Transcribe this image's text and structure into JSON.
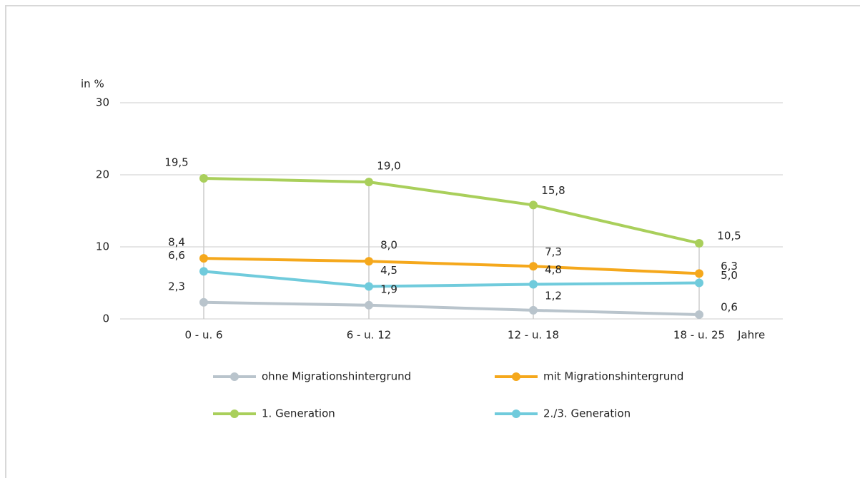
{
  "chart_data": {
    "type": "line",
    "y_label": "in %",
    "x_label": "Jahre",
    "categories": [
      "0 - u. 6",
      "6 - u. 12",
      "12 - u. 18",
      "18 - u. 25"
    ],
    "ylim": [
      0,
      30
    ],
    "yticks": [
      0,
      10,
      20,
      30
    ],
    "grid": true,
    "series": [
      {
        "name": "ohne Migrationshintergrund",
        "color": "#b9c4cc",
        "values": [
          2.3,
          1.9,
          1.2,
          0.6
        ],
        "value_labels": [
          "2,3",
          "1,9",
          "1,2",
          "0,6"
        ]
      },
      {
        "name": "mit Migrationshintergrund",
        "color": "#f5a81c",
        "values": [
          8.4,
          8.0,
          7.3,
          6.3
        ],
        "value_labels": [
          "8,4",
          "8,0",
          "7,3",
          "6,3"
        ]
      },
      {
        "name": "1. Generation",
        "color": "#a9cf5b",
        "values": [
          19.5,
          19.0,
          15.8,
          10.5
        ],
        "value_labels": [
          "19,5",
          "19,0",
          "15,8",
          "10,5"
        ]
      },
      {
        "name": "2./3. Generation",
        "color": "#70cbdc",
        "values": [
          6.6,
          4.5,
          4.8,
          5.0
        ],
        "value_labels": [
          "6,6",
          "4,5",
          "4,8",
          "5,0"
        ]
      }
    ]
  }
}
